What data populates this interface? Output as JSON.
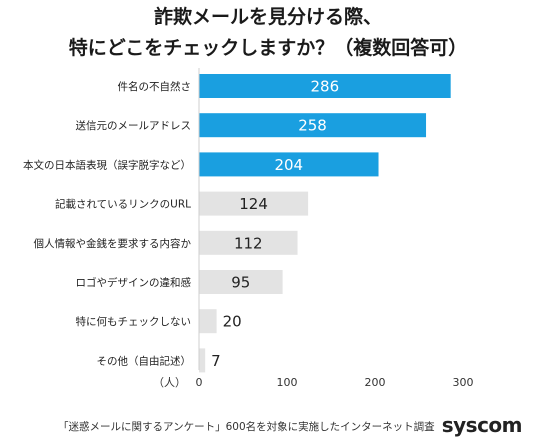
{
  "title": {
    "line1": "詐欺メールを見分ける際、",
    "line2": "特にどこをチェックしますか？（複数回答可）"
  },
  "colors": {
    "highlight": "#1a9fe0",
    "normal": "#e3e3e3",
    "highlight_label": "#ffffff",
    "normal_label": "#222222"
  },
  "chart_data": {
    "type": "bar",
    "orientation": "horizontal",
    "categories": [
      "件名の不自然さ",
      "送信元のメールアドレス",
      "本文の日本語表現（誤字脱字など）",
      "記載されているリンクのURL",
      "個人情報や金銭を要求する内容か",
      "ロゴやデザインの違和感",
      "特に何もチェックしない",
      "その他（自由記述）"
    ],
    "values": [
      286,
      258,
      204,
      124,
      112,
      95,
      20,
      7
    ],
    "highlighted_top": 3,
    "xlim": [
      0,
      300
    ],
    "xticks": [
      0,
      100,
      200,
      300
    ],
    "xunit": "（人）"
  },
  "footer": {
    "note": "「迷惑メールに関するアンケート」600名を対象に実施したインターネット調査",
    "brand": "syscom"
  }
}
